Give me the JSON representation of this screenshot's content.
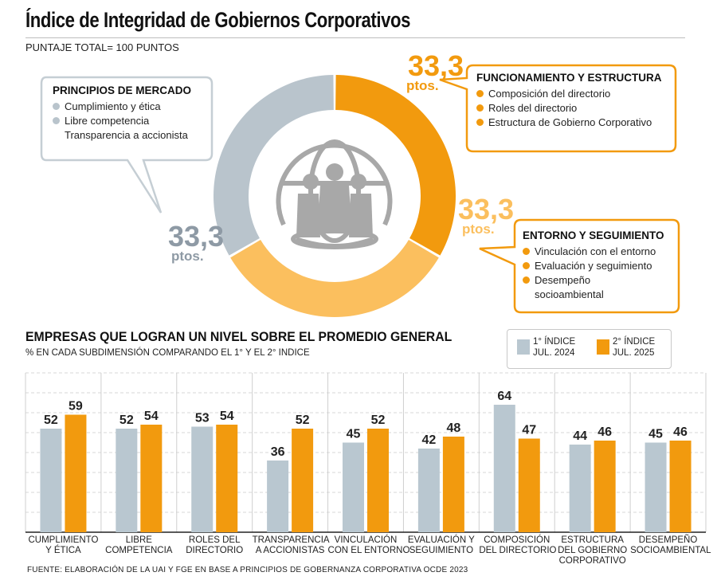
{
  "title": "Índice de Integridad de Gobiernos Corporativos",
  "subtitle": "PUNTAJE TOTAL= 100 PUNTOS",
  "donut": {
    "segments": [
      {
        "label": "FUNCIONAMIENTO Y ESTRUCTURA",
        "value": 33.3,
        "color": "#f29a0e"
      },
      {
        "label": "ENTORNO Y SEGUIMIENTO",
        "value": 33.3,
        "color": "#fbbf5e"
      },
      {
        "label": "PRINCIPIOS DE MERCADO",
        "value": 33.3,
        "color": "#b9c4cc"
      }
    ],
    "value_text": "33,3",
    "unit_text": "ptos."
  },
  "callouts": {
    "mercado": {
      "title": "PRINCIPIOS DE MERCADO",
      "items": [
        "Cumplimiento y ética",
        "Libre competencia",
        "Transparencia a accionista"
      ],
      "color": "#b9c4cc"
    },
    "funcionamiento": {
      "title": "FUNCIONAMIENTO Y ESTRUCTURA",
      "items": [
        "Composición del directorio",
        "Roles del directorio",
        "Estructura de Gobierno Corporativo"
      ],
      "color": "#f29a0e"
    },
    "entorno": {
      "title": "ENTORNO Y SEGUIMIENTO",
      "items": [
        "Vinculación con el entorno",
        "Evaluación y seguimiento",
        "Desempeño",
        "socioambiental"
      ],
      "color": "#f29a0e"
    }
  },
  "bar_section": {
    "title": "EMPRESAS QUE LOGRAN UN NIVEL SOBRE EL PROMEDIO GENERAL",
    "subtitle": "% EN CADA SUBDIMENSIÓN COMPARANDO EL 1° Y EL 2° INDICE"
  },
  "legend": [
    {
      "label": "1° ÍNDICE\nJUL. 2024",
      "color": "#b9c7d0"
    },
    {
      "label": "2° ÍNDICE\nJUL. 2025",
      "color": "#f29a0e"
    }
  ],
  "chart_data": {
    "type": "bar",
    "categories": [
      "CUMPLIMIENTO\nY ÉTICA",
      "LIBRE\nCOMPETENCIA",
      "ROLES DEL\nDIRECTORIO",
      "TRANSPARENCIA\nA ACCIONISTAS",
      "VINCULACIÓN\nCON EL ENTORNO",
      "EVALUACIÓN Y\nSEGUIMIENTO",
      "COMPOSICIÓN\nDEL DIRECTORIO",
      "ESTRUCTURA\nDEL GOBIERNO\nCORPORATIVO",
      "DESEMPEÑO\nSOCIOAMBIENTAL"
    ],
    "series": [
      {
        "name": "1° ÍNDICE JUL. 2024",
        "values": [
          52,
          52,
          53,
          36,
          45,
          42,
          64,
          44,
          45
        ],
        "color": "#b9c7d0"
      },
      {
        "name": "2° ÍNDICE JUL. 2025",
        "values": [
          59,
          54,
          54,
          52,
          52,
          48,
          47,
          46,
          46
        ],
        "color": "#f29a0e"
      }
    ],
    "ylim": [
      0,
      80
    ],
    "grid": true,
    "legend_position": "top-right"
  },
  "source": "FUENTE: ELABORACIÓN DE LA UAI Y FGE EN BASE A PRINCIPIOS DE GOBERNANZA CORPORATIVA OCDE 2023"
}
